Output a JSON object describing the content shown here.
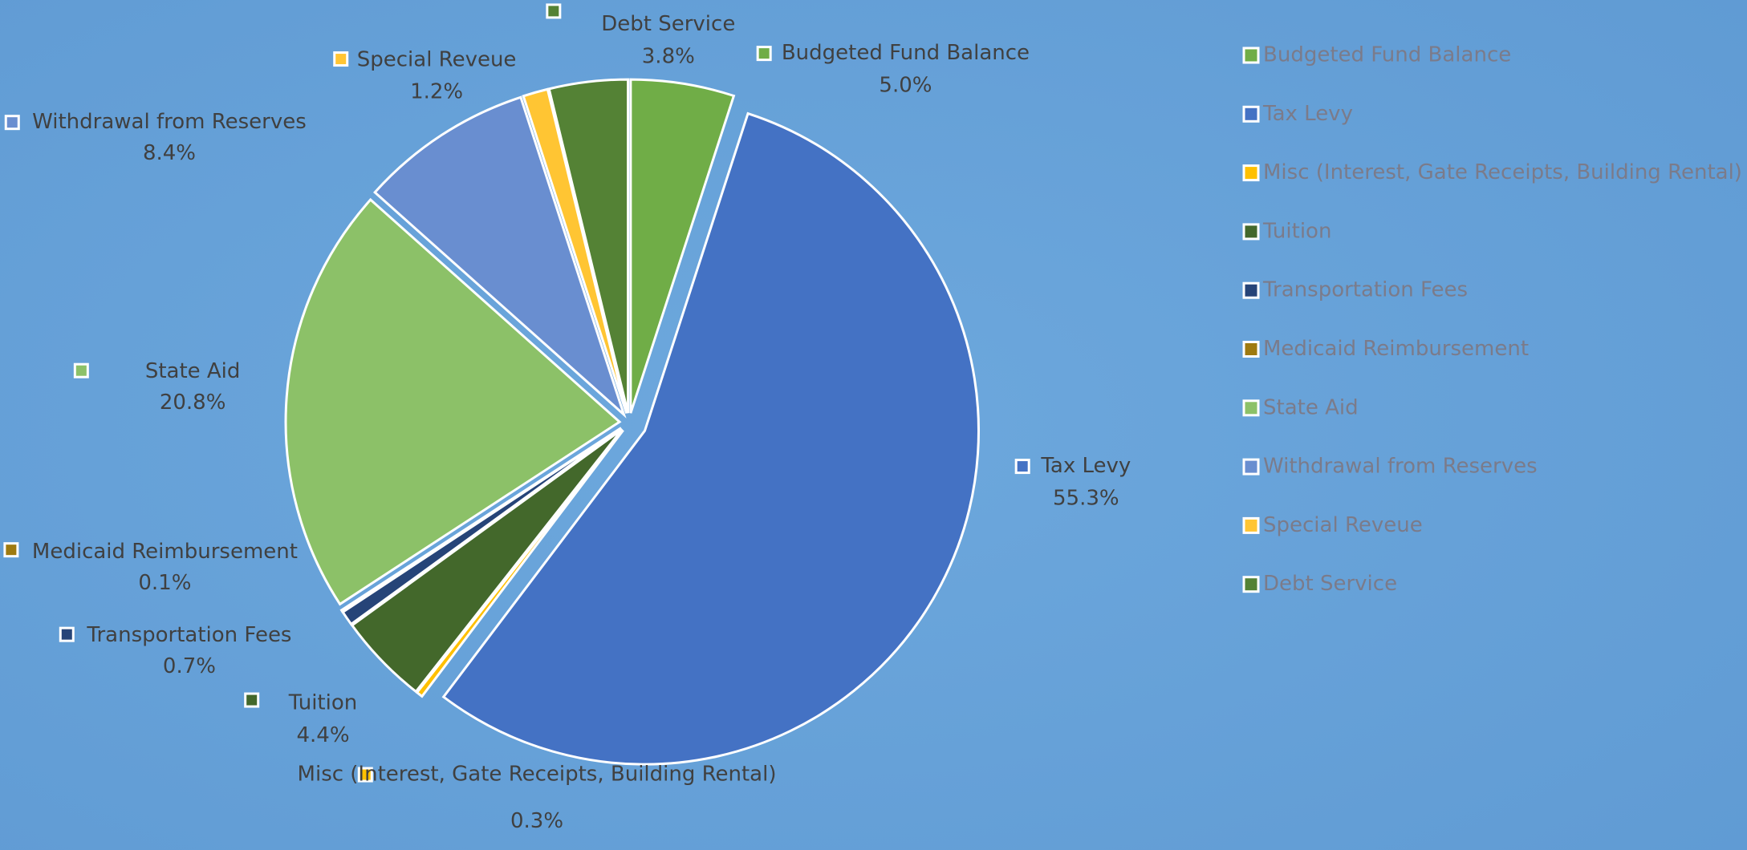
{
  "chart_data": {
    "type": "pie",
    "categories": [
      "Budgeted Fund Balance",
      "Tax Levy",
      "Misc (Interest, Gate Receipts, Building Rental)",
      "Tuition",
      "Transportation Fees",
      "Medicaid Reimbursement",
      "State Aid",
      "Withdrawal from Reserves",
      "Special Reveue",
      "Debt Service"
    ],
    "values": [
      5.0,
      55.3,
      0.3,
      4.4,
      0.7,
      0.1,
      20.8,
      8.4,
      1.2,
      3.8
    ],
    "value_labels": [
      "5.0%",
      "55.3%",
      "0.3%",
      "4.4%",
      "0.7%",
      "0.1%",
      "20.8%",
      "8.4%",
      "1.2%",
      "3.8%"
    ],
    "colors": [
      "#70ad47",
      "#4472c4",
      "#ffc000",
      "#43682b",
      "#264478",
      "#9e7a10",
      "#8cc168",
      "#698ed0",
      "#ffc533",
      "#548235"
    ],
    "legend": "right"
  }
}
